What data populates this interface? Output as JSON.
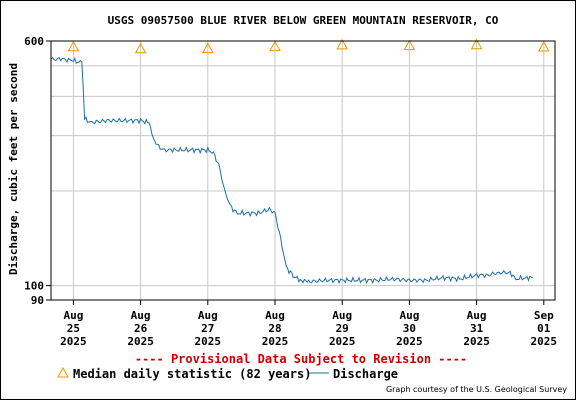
{
  "chart_data": {
    "type": "line",
    "title": "USGS 09057500 BLUE RIVER BELOW GREEN MOUNTAIN RESERVOIR, CO",
    "ylabel": "Discharge, cubic feet per second",
    "xlabel": "",
    "y_scale": "log",
    "ylim": [
      90,
      600
    ],
    "y_ticks": [
      "600",
      "100",
      "90"
    ],
    "x_ticks": [
      {
        "month": "Aug",
        "day": "25",
        "year": "2025"
      },
      {
        "month": "Aug",
        "day": "26",
        "year": "2025"
      },
      {
        "month": "Aug",
        "day": "27",
        "year": "2025"
      },
      {
        "month": "Aug",
        "day": "28",
        "year": "2025"
      },
      {
        "month": "Aug",
        "day": "29",
        "year": "2025"
      },
      {
        "month": "Aug",
        "day": "30",
        "year": "2025"
      },
      {
        "month": "Aug",
        "day": "31",
        "year": "2025"
      },
      {
        "month": "Sep",
        "day": "01",
        "year": "2025"
      }
    ],
    "xlim": [
      "2025-08-24T16:00",
      "2025-09-01T04:00"
    ],
    "grid": true,
    "series": [
      {
        "name": "Discharge",
        "color": "#1a6fa3",
        "x": [
          "2025-08-24T16:00",
          "2025-08-24T20:00",
          "2025-08-25T00:00",
          "2025-08-25T03:00",
          "2025-08-25T04:00",
          "2025-08-25T06:00",
          "2025-08-25T12:00",
          "2025-08-25T18:00",
          "2025-08-26T00:00",
          "2025-08-26T03:00",
          "2025-08-26T04:00",
          "2025-08-26T06:00",
          "2025-08-26T08:00",
          "2025-08-26T12:00",
          "2025-08-26T18:00",
          "2025-08-27T00:00",
          "2025-08-27T02:00",
          "2025-08-27T04:00",
          "2025-08-27T06:00",
          "2025-08-27T08:00",
          "2025-08-27T10:00",
          "2025-08-27T14:00",
          "2025-08-27T18:00",
          "2025-08-27T22:00",
          "2025-08-28T00:00",
          "2025-08-28T02:00",
          "2025-08-28T04:00",
          "2025-08-28T06:00",
          "2025-08-28T09:00",
          "2025-08-28T12:00",
          "2025-08-28T18:00",
          "2025-08-29T00:00",
          "2025-08-29T06:00",
          "2025-08-29T12:00",
          "2025-08-29T18:00",
          "2025-08-30T00:00",
          "2025-08-30T06:00",
          "2025-08-30T12:00",
          "2025-08-30T18:00",
          "2025-08-31T00:00",
          "2025-08-31T04:00",
          "2025-08-31T08:00",
          "2025-08-31T12:00",
          "2025-08-31T14:00",
          "2025-08-31T18:00",
          "2025-08-31T20:00"
        ],
        "y": [
          525,
          525,
          520,
          510,
          340,
          330,
          335,
          335,
          335,
          330,
          300,
          280,
          270,
          270,
          270,
          270,
          265,
          240,
          200,
          180,
          170,
          170,
          170,
          175,
          170,
          140,
          115,
          108,
          104,
          103,
          104,
          104,
          104,
          104,
          105,
          104,
          104,
          106,
          105,
          108,
          108,
          110,
          110,
          105,
          106,
          106
        ]
      },
      {
        "name": "Median daily statistic (82 years)",
        "color": "#e69a00",
        "marker": "triangle",
        "x": [
          "2025-08-25T00:00",
          "2025-08-26T00:00",
          "2025-08-27T00:00",
          "2025-08-28T00:00",
          "2025-08-29T00:00",
          "2025-08-30T00:00",
          "2025-08-31T00:00",
          "2025-09-01T00:00"
        ],
        "y": [
          575,
          567,
          568,
          576,
          583,
          580,
          584,
          574
        ]
      }
    ]
  },
  "provisional_notice": "---- Provisional Data Subject to Revision ----",
  "legend": {
    "median_label": "Median daily statistic (82 years)",
    "discharge_label": "Discharge"
  },
  "credit": "Graph courtesy of the U.S. Geological Survey"
}
